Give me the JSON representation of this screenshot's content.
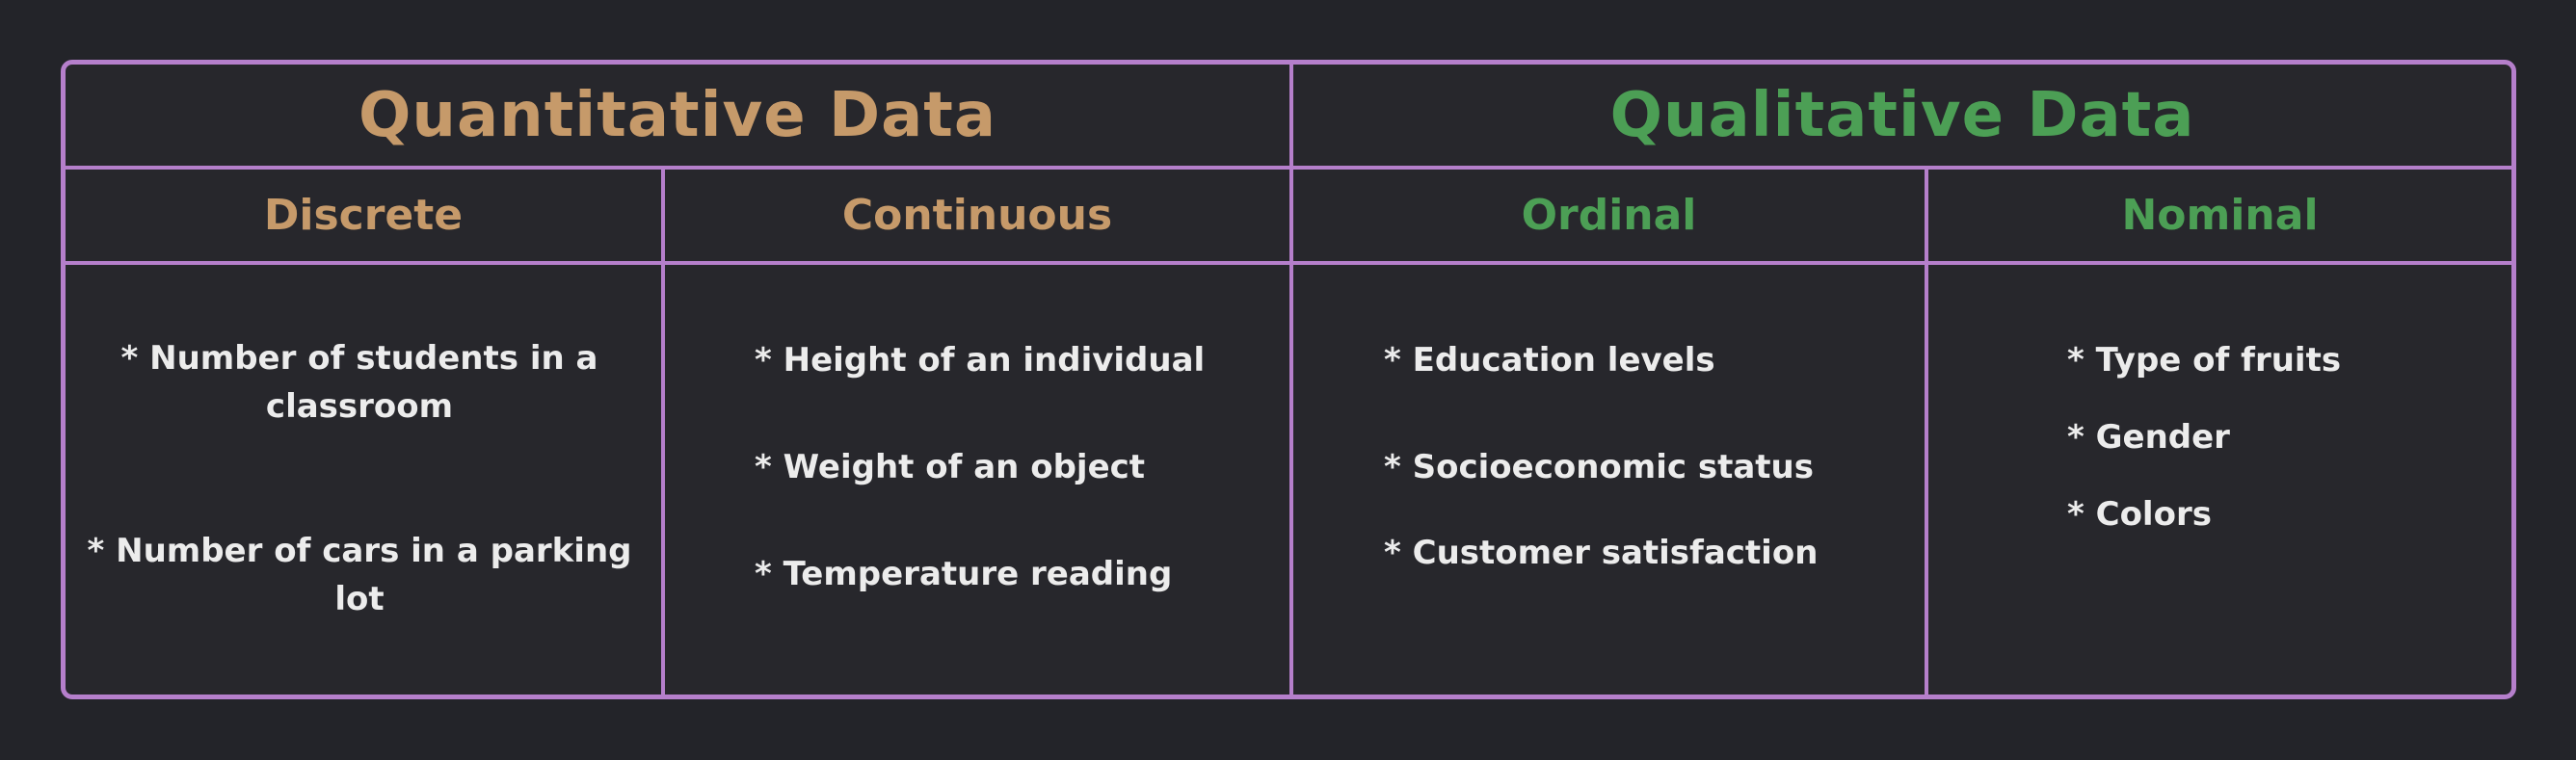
{
  "colors": {
    "background": "#232429",
    "table_fill": "#27272c",
    "border": "#b57fcb",
    "quantitative": "#c69a6a",
    "qualitative": "#4c9f55",
    "item_text": "#ececec"
  },
  "quantitative": {
    "title": "Quantitative Data",
    "discrete": {
      "label": "Discrete",
      "items": [
        "* Number of students in a classroom",
        "* Number of cars in a parking lot"
      ]
    },
    "continuous": {
      "label": "Continuous",
      "items": [
        "* Height of an individual",
        "* Weight of an object",
        "* Temperature reading"
      ]
    }
  },
  "qualitative": {
    "title": "Qualitative Data",
    "ordinal": {
      "label": "Ordinal",
      "items": [
        "* Education levels",
        "* Socioeconomic status",
        "* Customer satisfaction"
      ]
    },
    "nominal": {
      "label": "Nominal",
      "items": [
        "* Type of fruits",
        "* Gender",
        "* Colors"
      ]
    }
  }
}
